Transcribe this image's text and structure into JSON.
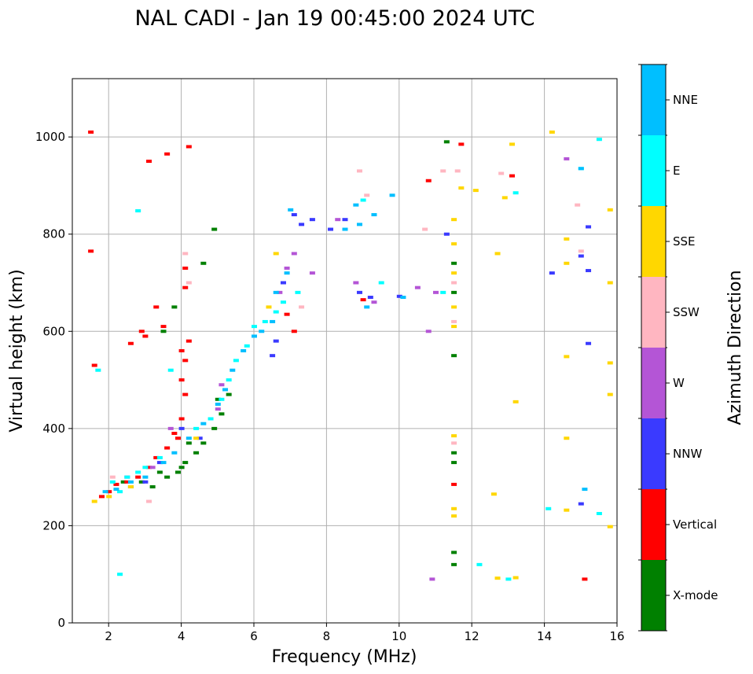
{
  "chart_data": {
    "type": "scatter",
    "title": "NAL CADI - Jan 19 00:45:00 2024 UTC",
    "xlabel": "Frequency (MHz)",
    "ylabel": "Virtual height (km)",
    "xlim": [
      1,
      16
    ],
    "ylim": [
      0,
      1120
    ],
    "xticks": [
      2,
      4,
      6,
      8,
      10,
      12,
      14,
      16
    ],
    "yticks": [
      0,
      200,
      400,
      600,
      800,
      1000
    ],
    "grid": true,
    "colorbar": {
      "label": "Azimuth Direction",
      "categories": [
        {
          "name": "X-mode",
          "color": "#008000"
        },
        {
          "name": "Vertical",
          "color": "#ff0000"
        },
        {
          "name": "NNW",
          "color": "#3a3aff"
        },
        {
          "name": "W",
          "color": "#b455d6"
        },
        {
          "name": "SSW",
          "color": "#ffb6c1"
        },
        {
          "name": "SSE",
          "color": "#ffd700"
        },
        {
          "name": "E",
          "color": "#00ffff"
        },
        {
          "name": "NNE",
          "color": "#00bfff"
        }
      ]
    },
    "series": [
      {
        "name": "X-mode",
        "points": [
          [
            2.4,
            290
          ],
          [
            3.2,
            280
          ],
          [
            3.6,
            300
          ],
          [
            3.9,
            310
          ],
          [
            4.0,
            320
          ],
          [
            4.1,
            330
          ],
          [
            4.4,
            350
          ],
          [
            4.6,
            370
          ],
          [
            4.9,
            400
          ],
          [
            5.1,
            430
          ],
          [
            5.3,
            470
          ],
          [
            4.6,
            740
          ],
          [
            3.5,
            600
          ],
          [
            3.8,
            650
          ],
          [
            4.9,
            810
          ],
          [
            11.5,
            120
          ],
          [
            11.5,
            145
          ],
          [
            11.5,
            330
          ],
          [
            11.5,
            350
          ],
          [
            11.5,
            550
          ],
          [
            11.5,
            680
          ],
          [
            11.5,
            740
          ],
          [
            11.3,
            990
          ],
          [
            2.9,
            290
          ],
          [
            3.4,
            310
          ],
          [
            4.2,
            370
          ],
          [
            5.0,
            460
          ],
          [
            2.6,
            280
          ]
        ]
      },
      {
        "name": "Vertical",
        "points": [
          [
            1.5,
            1010
          ],
          [
            1.5,
            765
          ],
          [
            1.6,
            530
          ],
          [
            1.8,
            260
          ],
          [
            2.0,
            270
          ],
          [
            2.2,
            285
          ],
          [
            2.5,
            290
          ],
          [
            2.8,
            300
          ],
          [
            3.1,
            320
          ],
          [
            3.3,
            340
          ],
          [
            3.6,
            360
          ],
          [
            3.9,
            380
          ],
          [
            4.0,
            420
          ],
          [
            4.1,
            470
          ],
          [
            4.0,
            500
          ],
          [
            4.1,
            540
          ],
          [
            4.2,
            580
          ],
          [
            4.0,
            560
          ],
          [
            3.8,
            390
          ],
          [
            3.5,
            610
          ],
          [
            2.6,
            575
          ],
          [
            3.0,
            590
          ],
          [
            2.9,
            600
          ],
          [
            4.2,
            980
          ],
          [
            3.6,
            965
          ],
          [
            3.1,
            950
          ],
          [
            4.1,
            730
          ],
          [
            4.1,
            690
          ],
          [
            6.9,
            635
          ],
          [
            7.1,
            600
          ],
          [
            9.0,
            665
          ],
          [
            10.8,
            910
          ],
          [
            11.7,
            985
          ],
          [
            13.1,
            920
          ],
          [
            15.1,
            90
          ],
          [
            11.5,
            285
          ],
          [
            3.3,
            650
          ]
        ]
      },
      {
        "name": "NNW",
        "points": [
          [
            3.0,
            290
          ],
          [
            3.4,
            330
          ],
          [
            4.0,
            400
          ],
          [
            4.5,
            380
          ],
          [
            6.5,
            550
          ],
          [
            6.6,
            580
          ],
          [
            6.8,
            700
          ],
          [
            7.1,
            840
          ],
          [
            7.3,
            820
          ],
          [
            7.6,
            830
          ],
          [
            8.1,
            810
          ],
          [
            8.5,
            830
          ],
          [
            8.9,
            680
          ],
          [
            9.2,
            670
          ],
          [
            10.0,
            672
          ],
          [
            11.3,
            800
          ],
          [
            14.2,
            720
          ],
          [
            15.2,
            815
          ],
          [
            15.0,
            755
          ],
          [
            15.2,
            725
          ],
          [
            15.2,
            575
          ],
          [
            15.0,
            245
          ]
        ]
      },
      {
        "name": "W",
        "points": [
          [
            2.5,
            300
          ],
          [
            3.2,
            320
          ],
          [
            3.7,
            400
          ],
          [
            5.1,
            490
          ],
          [
            5.0,
            440
          ],
          [
            6.7,
            680
          ],
          [
            6.9,
            730
          ],
          [
            7.1,
            760
          ],
          [
            7.6,
            720
          ],
          [
            8.3,
            830
          ],
          [
            8.8,
            700
          ],
          [
            9.3,
            660
          ],
          [
            10.8,
            600
          ],
          [
            10.5,
            690
          ],
          [
            11.0,
            680
          ],
          [
            10.9,
            90
          ],
          [
            14.6,
            955
          ]
        ]
      },
      {
        "name": "SSW",
        "points": [
          [
            2.1,
            300
          ],
          [
            3.1,
            250
          ],
          [
            4.1,
            760
          ],
          [
            4.2,
            700
          ],
          [
            7.3,
            650
          ],
          [
            8.9,
            930
          ],
          [
            9.1,
            880
          ],
          [
            11.2,
            930
          ],
          [
            11.6,
            930
          ],
          [
            11.5,
            700
          ],
          [
            11.5,
            620
          ],
          [
            12.8,
            925
          ],
          [
            14.9,
            860
          ],
          [
            15.0,
            765
          ],
          [
            11.5,
            370
          ],
          [
            10.7,
            810
          ]
        ]
      },
      {
        "name": "SSE",
        "points": [
          [
            1.6,
            250
          ],
          [
            2.0,
            260
          ],
          [
            2.6,
            280
          ],
          [
            4.4,
            380
          ],
          [
            6.4,
            650
          ],
          [
            6.6,
            760
          ],
          [
            11.5,
            780
          ],
          [
            11.5,
            720
          ],
          [
            11.5,
            650
          ],
          [
            11.5,
            610
          ],
          [
            11.5,
            385
          ],
          [
            11.5,
            235
          ],
          [
            11.5,
            220
          ],
          [
            11.5,
            830
          ],
          [
            11.7,
            895
          ],
          [
            12.1,
            890
          ],
          [
            12.7,
            760
          ],
          [
            13.1,
            985
          ],
          [
            12.9,
            875
          ],
          [
            13.2,
            455
          ],
          [
            12.6,
            265
          ],
          [
            12.7,
            92
          ],
          [
            14.2,
            1010
          ],
          [
            14.6,
            790
          ],
          [
            14.6,
            740
          ],
          [
            14.6,
            548
          ],
          [
            14.6,
            380
          ],
          [
            14.6,
            232
          ],
          [
            15.8,
            850
          ],
          [
            15.8,
            700
          ],
          [
            15.8,
            535
          ],
          [
            15.8,
            470
          ],
          [
            15.8,
            198
          ],
          [
            13.2,
            93
          ]
        ]
      },
      {
        "name": "E",
        "points": [
          [
            1.7,
            520
          ],
          [
            2.1,
            290
          ],
          [
            2.3,
            270
          ],
          [
            2.5,
            300
          ],
          [
            2.8,
            310
          ],
          [
            3.0,
            320
          ],
          [
            3.4,
            340
          ],
          [
            4.4,
            400
          ],
          [
            4.8,
            420
          ],
          [
            5.1,
            460
          ],
          [
            5.3,
            500
          ],
          [
            5.5,
            540
          ],
          [
            5.8,
            570
          ],
          [
            6.0,
            610
          ],
          [
            6.3,
            620
          ],
          [
            6.6,
            640
          ],
          [
            6.8,
            660
          ],
          [
            7.2,
            680
          ],
          [
            3.7,
            520
          ],
          [
            9.0,
            870
          ],
          [
            9.5,
            700
          ],
          [
            13.2,
            885
          ],
          [
            14.1,
            235
          ],
          [
            15.5,
            995
          ],
          [
            15.5,
            225
          ],
          [
            15.0,
            935
          ],
          [
            12.2,
            120
          ],
          [
            13.0,
            90
          ],
          [
            2.3,
            100
          ],
          [
            2.8,
            848
          ],
          [
            11.2,
            680
          ]
        ]
      },
      {
        "name": "NNE",
        "points": [
          [
            1.9,
            270
          ],
          [
            2.2,
            275
          ],
          [
            2.6,
            290
          ],
          [
            3.0,
            300
          ],
          [
            3.5,
            330
          ],
          [
            3.8,
            350
          ],
          [
            4.2,
            380
          ],
          [
            4.6,
            410
          ],
          [
            5.0,
            450
          ],
          [
            5.2,
            480
          ],
          [
            5.4,
            520
          ],
          [
            5.7,
            560
          ],
          [
            6.0,
            590
          ],
          [
            6.2,
            600
          ],
          [
            6.5,
            620
          ],
          [
            6.6,
            680
          ],
          [
            6.9,
            720
          ],
          [
            7.0,
            850
          ],
          [
            8.5,
            810
          ],
          [
            8.8,
            860
          ],
          [
            9.1,
            650
          ],
          [
            9.3,
            840
          ],
          [
            9.8,
            880
          ],
          [
            8.9,
            820
          ],
          [
            10.1,
            670
          ],
          [
            15.0,
            935
          ],
          [
            15.1,
            275
          ]
        ]
      }
    ]
  }
}
